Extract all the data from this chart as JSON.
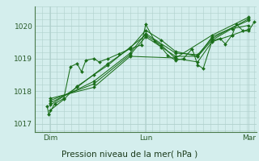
{
  "bg_color": "#d4eeed",
  "grid_color": "#b0d0cc",
  "line_color": "#1a6e1a",
  "marker_color": "#1a6e1a",
  "title": "Pression niveau de la mer( hPa )",
  "ylabel_ticks": [
    1017,
    1018,
    1019,
    1020
  ],
  "xlim": [
    0.0,
    1.0
  ],
  "ylim": [
    1016.75,
    1020.6
  ],
  "xtick_labels": [
    "Dim",
    "Lun",
    "Mar"
  ],
  "xtick_pos": [
    0.07,
    0.5,
    0.965
  ],
  "series": [
    [
      [
        0.055,
        1017.55
      ],
      [
        0.062,
        1017.3
      ],
      [
        0.09,
        1017.62
      ],
      [
        0.13,
        1017.78
      ],
      [
        0.16,
        1018.75
      ],
      [
        0.19,
        1018.85
      ],
      [
        0.21,
        1018.6
      ],
      [
        0.23,
        1018.95
      ],
      [
        0.265,
        1019.0
      ],
      [
        0.29,
        1018.9
      ],
      [
        0.33,
        1019.0
      ],
      [
        0.38,
        1019.15
      ],
      [
        0.43,
        1019.3
      ],
      [
        0.48,
        1019.42
      ],
      [
        0.5,
        1020.05
      ],
      [
        0.54,
        1019.55
      ],
      [
        0.57,
        1019.35
      ],
      [
        0.6,
        1019.1
      ],
      [
        0.635,
        1018.95
      ],
      [
        0.67,
        1019.0
      ],
      [
        0.71,
        1019.3
      ],
      [
        0.735,
        1018.8
      ],
      [
        0.76,
        1018.7
      ],
      [
        0.8,
        1019.55
      ],
      [
        0.835,
        1019.62
      ],
      [
        0.86,
        1019.45
      ],
      [
        0.89,
        1019.72
      ],
      [
        0.91,
        1020.05
      ],
      [
        0.94,
        1019.85
      ],
      [
        0.965,
        1019.85
      ],
      [
        0.99,
        1020.12
      ]
    ],
    [
      [
        0.07,
        1017.42
      ],
      [
        0.13,
        1017.75
      ],
      [
        0.19,
        1018.15
      ],
      [
        0.265,
        1018.5
      ],
      [
        0.33,
        1018.8
      ],
      [
        0.43,
        1019.35
      ],
      [
        0.5,
        1019.72
      ],
      [
        0.57,
        1019.42
      ],
      [
        0.635,
        1019.0
      ],
      [
        0.735,
        1018.9
      ],
      [
        0.8,
        1019.52
      ],
      [
        0.89,
        1019.72
      ],
      [
        0.965,
        1019.9
      ]
    ],
    [
      [
        0.07,
        1017.58
      ],
      [
        0.19,
        1018.12
      ],
      [
        0.33,
        1018.85
      ],
      [
        0.43,
        1019.32
      ],
      [
        0.5,
        1019.87
      ],
      [
        0.57,
        1019.57
      ],
      [
        0.635,
        1019.22
      ],
      [
        0.735,
        1019.07
      ],
      [
        0.8,
        1019.57
      ],
      [
        0.89,
        1019.92
      ],
      [
        0.965,
        1020.02
      ]
    ],
    [
      [
        0.07,
        1017.65
      ],
      [
        0.265,
        1018.3
      ],
      [
        0.43,
        1019.17
      ],
      [
        0.5,
        1019.77
      ],
      [
        0.635,
        1019.17
      ],
      [
        0.735,
        1019.12
      ],
      [
        0.8,
        1019.62
      ],
      [
        0.965,
        1020.22
      ]
    ],
    [
      [
        0.07,
        1017.72
      ],
      [
        0.265,
        1018.22
      ],
      [
        0.43,
        1019.12
      ],
      [
        0.5,
        1019.67
      ],
      [
        0.635,
        1019.07
      ],
      [
        0.735,
        1019.07
      ],
      [
        0.8,
        1019.67
      ],
      [
        0.965,
        1020.17
      ]
    ],
    [
      [
        0.07,
        1017.78
      ],
      [
        0.265,
        1018.12
      ],
      [
        0.43,
        1019.07
      ],
      [
        0.635,
        1019.02
      ],
      [
        0.8,
        1019.72
      ],
      [
        0.965,
        1020.27
      ]
    ]
  ]
}
